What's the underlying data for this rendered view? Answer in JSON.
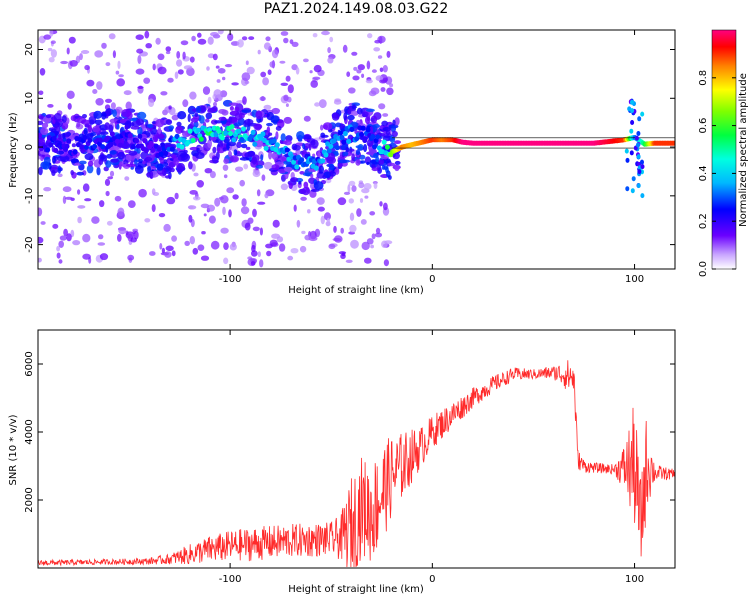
{
  "title": "PAZ1.2024.149.08.03.G22",
  "colors": {
    "snr_line": "#ff2a2a"
  },
  "chart_data": [
    {
      "type": "heatmap",
      "xlabel": "Height of straight line (km)",
      "ylabel": "Frequency (Hz)",
      "xlim": [
        -195,
        120
      ],
      "ylim": [
        -25,
        24
      ],
      "xticks": [
        -100,
        0,
        100
      ],
      "yticks": [
        -20,
        -10,
        0,
        10,
        20
      ],
      "colorbar": {
        "label": "Normalized spectral amplitude",
        "range": [
          0.0,
          1.0
        ],
        "ticks": [
          0.0,
          0.2,
          0.4,
          0.6,
          0.8
        ],
        "colormap": "hsv"
      },
      "ridge": {
        "x": [
          -195,
          -180,
          -165,
          -150,
          -135,
          -120,
          -110,
          -100,
          -90,
          -80,
          -70,
          -60,
          -50,
          -40,
          -30,
          -25,
          -20,
          -15,
          -10,
          -5,
          0,
          5,
          10,
          15,
          20,
          40,
          60,
          80,
          95,
          100,
          105,
          110,
          120
        ],
        "frequency": [
          1,
          0,
          1,
          2,
          -1,
          2,
          3,
          3,
          2,
          1,
          -2,
          -4,
          0,
          3,
          2,
          0,
          -1,
          0,
          0.5,
          1,
          1.5,
          1.5,
          1.5,
          1,
          0.8,
          0.8,
          0.8,
          0.8,
          1.5,
          2,
          0.6,
          0.8,
          0.8
        ],
        "amplitude": [
          0.2,
          0.25,
          0.25,
          0.2,
          0.2,
          0.45,
          0.5,
          0.45,
          0.4,
          0.4,
          0.35,
          0.3,
          0.35,
          0.3,
          0.25,
          0.4,
          0.65,
          0.85,
          0.8,
          0.85,
          0.9,
          0.85,
          0.9,
          1.0,
          1.0,
          1.0,
          1.0,
          1.0,
          0.9,
          0.3,
          0.55,
          0.9,
          0.9
        ]
      }
    },
    {
      "type": "line",
      "xlabel": "Height of straight line (km)",
      "ylabel": "SNR (10 * v/v)",
      "xlim": [
        -195,
        120
      ],
      "ylim": [
        0,
        7000
      ],
      "xticks": [
        -100,
        0,
        100
      ],
      "yticks": [
        2000,
        4000,
        6000
      ],
      "series": [
        {
          "x": [
            -195,
            -180,
            -160,
            -140,
            -130,
            -120,
            -110,
            -100,
            -90,
            -80,
            -70,
            -60,
            -50,
            -45,
            -40,
            -35,
            -30,
            -25,
            -20,
            -15,
            -10,
            -5,
            0,
            10,
            20,
            30,
            40,
            50,
            60,
            65,
            70,
            72,
            75,
            80,
            90,
            95,
            100,
            103,
            106,
            110,
            120
          ],
          "y": [
            150,
            160,
            180,
            200,
            260,
            400,
            550,
            650,
            700,
            750,
            800,
            820,
            850,
            900,
            1200,
            1800,
            1600,
            2200,
            2700,
            3000,
            3300,
            3600,
            4000,
            4500,
            5000,
            5400,
            5700,
            5700,
            5750,
            5700,
            5600,
            3200,
            3000,
            2950,
            2900,
            2950,
            3000,
            1200,
            3100,
            2800,
            2750
          ],
          "amplitude": [
            80,
            80,
            80,
            100,
            150,
            300,
            400,
            450,
            500,
            500,
            500,
            500,
            500,
            700,
            1500,
            1500,
            1500,
            1500,
            1200,
            1000,
            800,
            600,
            500,
            400,
            300,
            250,
            200,
            150,
            200,
            400,
            600,
            300,
            200,
            150,
            150,
            700,
            1900,
            1500,
            1500,
            250,
            150
          ]
        }
      ]
    }
  ]
}
